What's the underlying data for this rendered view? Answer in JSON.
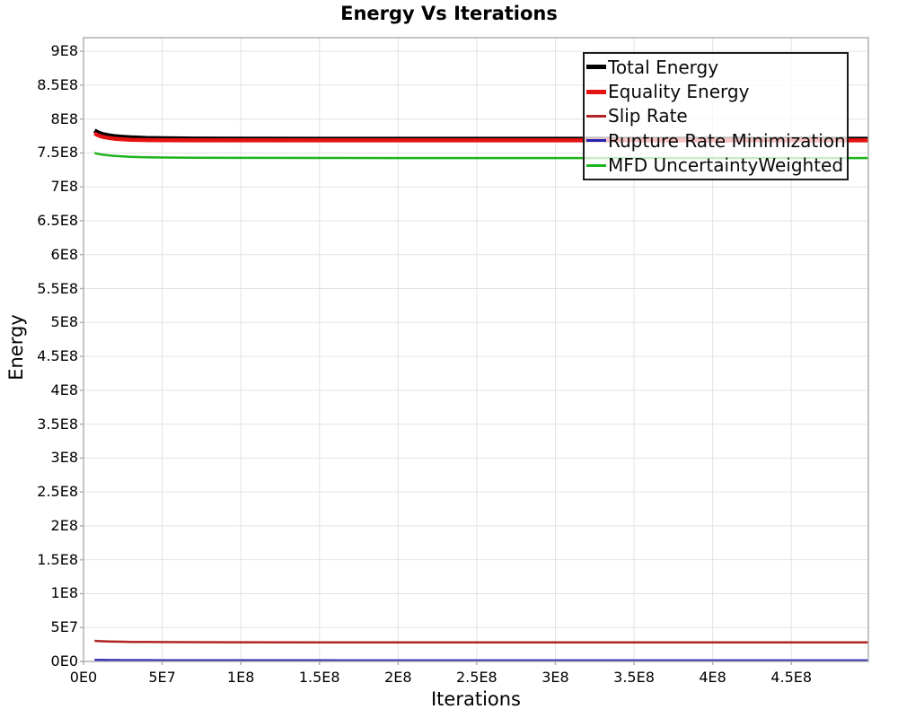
{
  "title": "Energy Vs Iterations",
  "x_axis": {
    "label": "Iterations"
  },
  "y_axis": {
    "label": "Energy"
  },
  "legend": {
    "position": "top-right",
    "items": [
      {
        "label": "Total Energy",
        "color": "#000000",
        "sample_thickness": 5
      },
      {
        "label": "Equality Energy",
        "color": "#e61212",
        "sample_thickness": 5
      },
      {
        "label": "Slip Rate",
        "color": "#b22424",
        "sample_thickness": 3
      },
      {
        "label": "Rupture Rate Minimization",
        "color": "#2424b2",
        "sample_thickness": 3
      },
      {
        "label": "MFD UncertaintyWeighted",
        "color": "#1db41d",
        "sample_thickness": 3
      }
    ]
  },
  "colors": {
    "background": "#ffffff",
    "plot_border": "#b0b0b0",
    "gridline": "#e3e3e3",
    "tick_mark": "#b0b0b0",
    "text": "#000000"
  },
  "chart_data": {
    "type": "line",
    "title": "Energy Vs Iterations",
    "xlabel": "Iterations",
    "ylabel": "Energy",
    "xlim": [
      0,
      499000000
    ],
    "ylim": [
      0,
      920000000
    ],
    "grid": true,
    "legend_position": "top-right",
    "x_ticks": {
      "values": [
        0,
        50000000,
        100000000,
        150000000,
        200000000,
        250000000,
        300000000,
        350000000,
        400000000,
        450000000
      ],
      "labels": [
        "0E0",
        "5E7",
        "1E8",
        "1.5E8",
        "2E8",
        "2.5E8",
        "3E8",
        "3.5E8",
        "4E8",
        "4.5E8"
      ]
    },
    "y_ticks": {
      "values": [
        0,
        50000000,
        100000000,
        150000000,
        200000000,
        250000000,
        300000000,
        350000000,
        400000000,
        450000000,
        500000000,
        550000000,
        600000000,
        650000000,
        700000000,
        750000000,
        800000000,
        850000000,
        900000000
      ],
      "labels": [
        "0E0",
        "5E7",
        "1E8",
        "1.5E8",
        "2E8",
        "2.5E8",
        "3E8",
        "3.5E8",
        "4E8",
        "4.5E8",
        "5E8",
        "5.5E8",
        "6E8",
        "6.5E8",
        "7E8",
        "7.5E8",
        "8E8",
        "8.5E8",
        "9E8"
      ]
    },
    "x": [
      7000000,
      9000000,
      12000000,
      16000000,
      20000000,
      25000000,
      30000000,
      40000000,
      50000000,
      70000000,
      100000000,
      150000000,
      200000000,
      250000000,
      300000000,
      350000000,
      400000000,
      450000000,
      499000000
    ],
    "series": [
      {
        "name": "Total Energy",
        "color": "#000000",
        "line_width": 5,
        "values": [
          783000000,
          780200000,
          777600000,
          775700000,
          774400000,
          773400000,
          772700000,
          771800000,
          771300000,
          770900000,
          770700000,
          770600000,
          770500000,
          770500000,
          770500000,
          770500000,
          770500000,
          770500000,
          770500000
        ]
      },
      {
        "name": "Equality Energy",
        "color": "#e61212",
        "line_width": 4.5,
        "values": [
          779000000,
          776300000,
          773900000,
          772200000,
          771000000,
          770000000,
          769400000,
          768900000,
          768700000,
          768600000,
          768500000,
          768500000,
          768500000,
          768500000,
          768500000,
          768500000,
          768500000,
          768500000,
          768500000
        ]
      },
      {
        "name": "Slip Rate",
        "color": "#b22424",
        "line_width": 2.5,
        "values": [
          30500000,
          30100000,
          29800000,
          29500000,
          29300000,
          29100000,
          28900000,
          28700000,
          28600000,
          28400000,
          28300000,
          28200000,
          28200000,
          28200000,
          28200000,
          28200000,
          28200000,
          28200000,
          28200000
        ]
      },
      {
        "name": "Rupture Rate Minimization",
        "color": "#2424b2",
        "line_width": 2.5,
        "values": [
          2200000,
          2100000,
          2100000,
          2000000,
          2000000,
          1900000,
          1900000,
          1800000,
          1700000,
          1700000,
          1600000,
          1600000,
          1500000,
          1500000,
          1500000,
          1500000,
          1500000,
          1500000,
          1500000
        ]
      },
      {
        "name": "MFD UncertaintyWeighted",
        "color": "#1db41d",
        "line_width": 2.5,
        "values": [
          750000000,
          748700000,
          747500000,
          746400000,
          745600000,
          744900000,
          744400000,
          743700000,
          743300000,
          742900000,
          742700000,
          742600000,
          742500000,
          742500000,
          742500000,
          742500000,
          742500000,
          742500000,
          742500000
        ]
      }
    ]
  }
}
